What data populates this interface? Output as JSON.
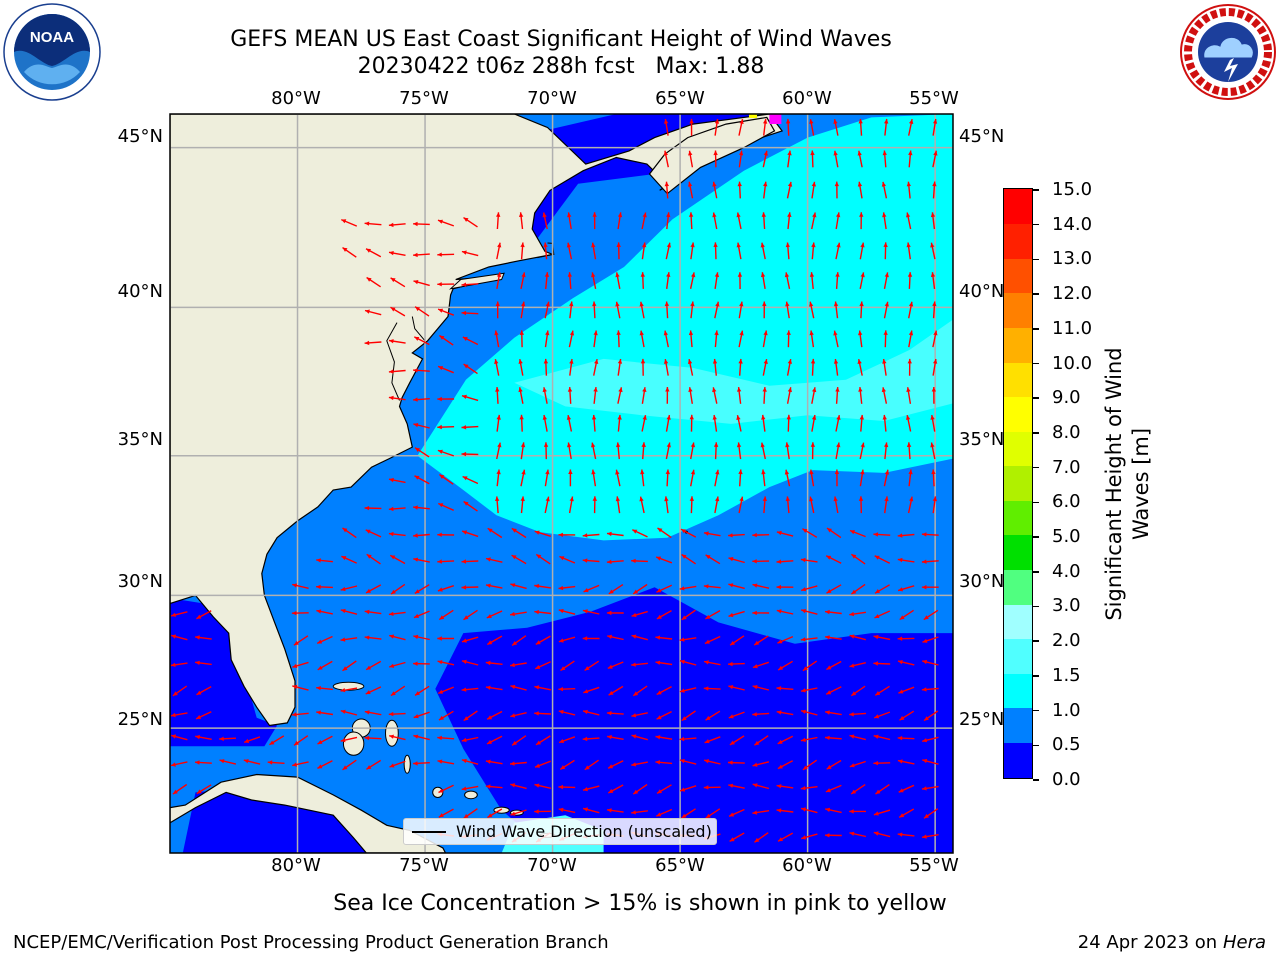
{
  "header": {
    "title_line1": "GEFS MEAN US East Coast Significant Height of Wind Waves",
    "title_line2": "20230422 t06z 288h fcst   Max: 1.88"
  },
  "logos": {
    "left": "noaa-logo",
    "left_text": "NOAA",
    "right": "nws-logo"
  },
  "map": {
    "longitude_labels": [
      "80°W",
      "75°W",
      "70°W",
      "65°W",
      "60°W",
      "55°W"
    ],
    "latitude_labels": [
      "45°N",
      "40°N",
      "35°N",
      "30°N",
      "25°N"
    ],
    "extent": {
      "lon_min": -85,
      "lon_max": -54.3,
      "lat_min": 20.1,
      "lat_max": 46
    },
    "land_color": "#eeeedc",
    "grid_color": "#b0b0b0",
    "arrow_color": "#ff0000"
  },
  "colorbar": {
    "title_line1": "Significant Height of Wind",
    "title_line2": "Waves [m]",
    "ticks": [
      "0.0",
      "0.5",
      "1.0",
      "1.5",
      "2.0",
      "3.0",
      "4.0",
      "5.0",
      "6.0",
      "7.0",
      "8.0",
      "9.0",
      "10.0",
      "11.0",
      "12.0",
      "13.0",
      "14.0",
      "15.0"
    ],
    "colors": [
      "#0000ff",
      "#0080ff",
      "#00ffff",
      "#50ffff",
      "#a0ffff",
      "#50ff80",
      "#00e000",
      "#60ee00",
      "#b0f000",
      "#e0ff00",
      "#ffff00",
      "#ffe000",
      "#ffb000",
      "#ff8000",
      "#ff5000",
      "#ff2000",
      "#ff0000"
    ]
  },
  "legend": {
    "label": "Wind Wave Direction (unscaled)"
  },
  "note": "Sea Ice Concentration > 15% is shown in pink to yellow",
  "footer": {
    "left": "NCEP/EMC/Verification Post Processing Product Generation Branch",
    "date": "24 Apr 2023 on ",
    "host": "Hera"
  },
  "chart_data": {
    "type": "heatmap",
    "title": "GEFS MEAN US East Coast Significant Height of Wind Waves",
    "subtitle": "20230422 t06z 288h fcst   Max: 1.88",
    "variable": "Significant Height of Wind Waves [m]",
    "max_value": 1.88,
    "colorbar_levels": [
      0.0,
      0.5,
      1.0,
      1.5,
      2.0,
      3.0,
      4.0,
      5.0,
      6.0,
      7.0,
      8.0,
      9.0,
      10.0,
      11.0,
      12.0,
      13.0,
      14.0,
      15.0
    ],
    "x_ticks": [
      "80°W",
      "75°W",
      "70°W",
      "65°W",
      "60°W",
      "55°W"
    ],
    "y_ticks": [
      "45°N",
      "40°N",
      "35°N",
      "30°N",
      "25°N"
    ],
    "grid": true,
    "legend": [
      "Wind Wave Direction (unscaled)"
    ],
    "legend_position": "bottom-center"
  }
}
